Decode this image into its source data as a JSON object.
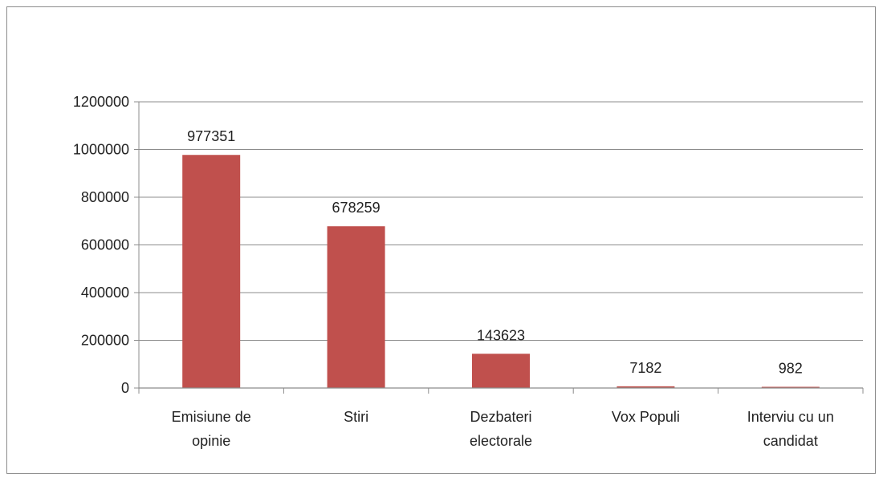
{
  "chart_data": {
    "type": "bar",
    "categories": [
      [
        "Emisiune de",
        "opinie"
      ],
      [
        "Stiri"
      ],
      [
        "Dezbateri",
        "electorale"
      ],
      [
        "Vox Populi"
      ],
      [
        "Interviu cu un",
        "candidat"
      ]
    ],
    "values": [
      977351,
      678259,
      143623,
      7182,
      982
    ],
    "data_labels": [
      "977351",
      "678259",
      "143623",
      "7182",
      "982"
    ],
    "yticks": [
      "0",
      "200000",
      "400000",
      "600000",
      "800000",
      "1000000",
      "1200000"
    ],
    "ylim": [
      0,
      1200000
    ],
    "ytick_step": 200000,
    "grid": "horizontal",
    "bar_color": "#c0504d",
    "grid_color": "#8c8c8c"
  }
}
